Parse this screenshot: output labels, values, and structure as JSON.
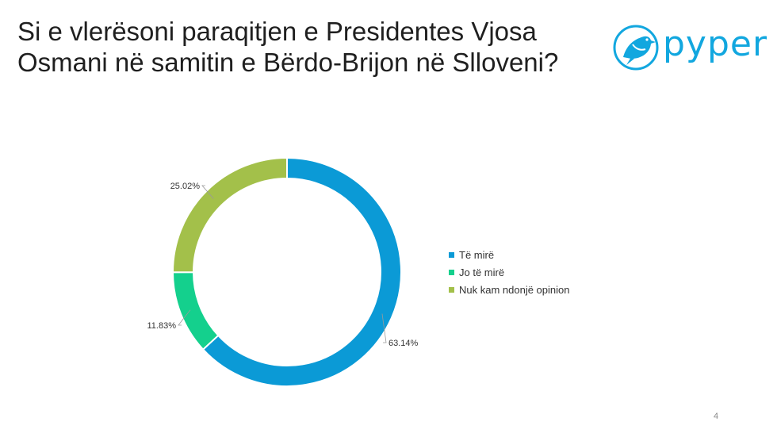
{
  "title": "Si e vlerësoni paraqitjen e Presidentes Vjosa Osmani në samitin e Bërdo-Brijon në Slloveni?",
  "logo": {
    "text": "pyper",
    "icon": "bird-icon",
    "color": "#12a7df"
  },
  "page_number": "4",
  "chart_data": {
    "type": "pie",
    "variant": "donut",
    "categories": [
      "Të mirë",
      "Jo të mirë",
      "Nuk kam ndonjë opinion"
    ],
    "values": [
      63.14,
      11.83,
      25.02
    ],
    "labels": [
      "63.14%",
      "11.83%",
      "25.02%"
    ],
    "colors": [
      "#0b9ad6",
      "#14d08d",
      "#a3c04a"
    ],
    "legend": "right"
  }
}
